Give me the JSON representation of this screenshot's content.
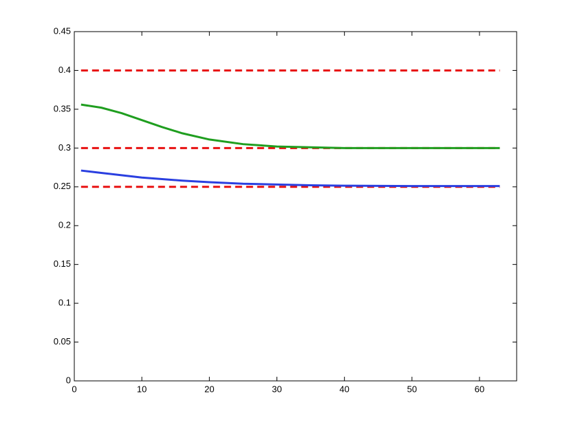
{
  "chart_data": {
    "type": "line",
    "x": [
      1,
      4,
      7,
      10,
      13,
      16,
      20,
      25,
      30,
      35,
      40,
      50,
      63
    ],
    "series": [
      {
        "color": "#e81010",
        "dashed": true,
        "values": [
          0.4,
          0.4,
          0.4,
          0.4,
          0.4,
          0.4,
          0.4,
          0.4,
          0.4,
          0.4,
          0.4,
          0.4,
          0.4
        ]
      },
      {
        "color": "#e81010",
        "dashed": true,
        "values": [
          0.3,
          0.3,
          0.3,
          0.3,
          0.3,
          0.3,
          0.3,
          0.3,
          0.3,
          0.3,
          0.3,
          0.3,
          0.3
        ]
      },
      {
        "color": "#e81010",
        "dashed": true,
        "values": [
          0.25,
          0.25,
          0.25,
          0.25,
          0.25,
          0.25,
          0.25,
          0.25,
          0.25,
          0.25,
          0.25,
          0.25,
          0.25
        ]
      },
      {
        "color": "#1f9e1f",
        "dashed": false,
        "values": [
          0.356,
          0.352,
          0.345,
          0.336,
          0.327,
          0.319,
          0.311,
          0.305,
          0.302,
          0.301,
          0.3,
          0.3,
          0.3
        ]
      },
      {
        "color": "#2a3fe0",
        "dashed": false,
        "values": [
          0.271,
          0.268,
          0.265,
          0.262,
          0.26,
          0.258,
          0.256,
          0.254,
          0.253,
          0.252,
          0.2515,
          0.251,
          0.251
        ]
      }
    ],
    "xlim": [
      0,
      65.5
    ],
    "xticks": [
      0,
      10,
      20,
      30,
      40,
      50,
      60
    ],
    "ylim": [
      0,
      0.45
    ],
    "yticks": [
      0,
      0.05,
      0.1,
      0.15,
      0.2,
      0.25,
      0.3,
      0.35,
      0.4,
      0.45
    ],
    "grid": false
  }
}
